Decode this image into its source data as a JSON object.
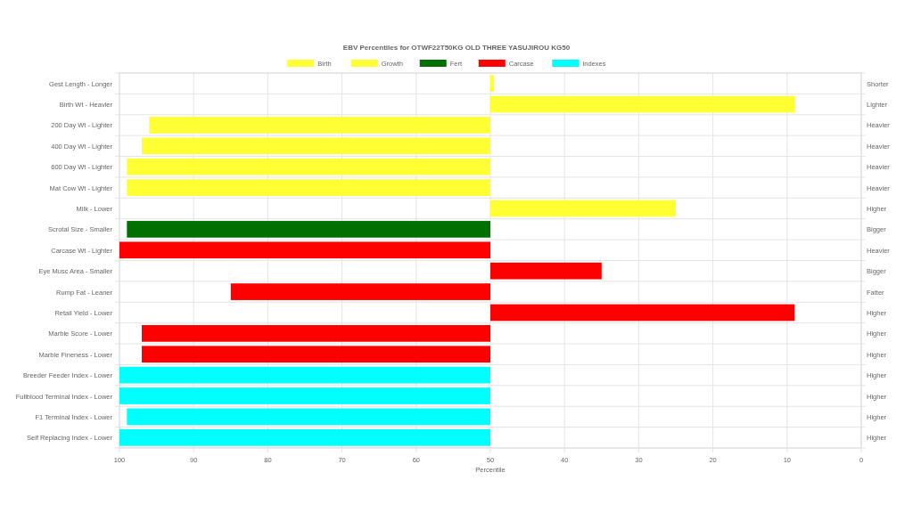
{
  "chart_data": {
    "type": "bar",
    "orientation": "horizontal",
    "title": "EBV Percentiles for OTWF22T50KG OLD THREE YASUJIROU KG50",
    "xlabel": "Percentile",
    "categories": [
      "Gest Length - Longer",
      "Birth Wt - Heavier",
      "200 Day Wt - Lighter",
      "400 Day Wt - Lighter",
      "600 Day Wt - Lighter",
      "Mat Cow Wt - Lighter",
      "Milk - Lower",
      "Scrotal Size - Smaller",
      "Carcase Wt - Lighter",
      "Eye Musc Area - Smaller",
      "Rump Fat - Leaner",
      "Retail Yield - Lower",
      "Marble Score - Lower",
      "Marble Fineness - Lower",
      "Breeder Feeder Index - Lower",
      "Fullblood Terminal Index - Lower",
      "F1 Terminal Index - Lower",
      "Self Replacing Index - Lower"
    ],
    "y2_categories": [
      "Shorter",
      "Lighter",
      "Heavier",
      "Heavier",
      "Heavier",
      "Heavier",
      "Higher",
      "Bigger",
      "Heavier",
      "Bigger",
      "Fatter",
      "Higher",
      "Higher",
      "Higher",
      "Higher",
      "Higher",
      "Higher",
      "Higher"
    ],
    "series": [
      {
        "name": "Birth",
        "color": "#ffff33",
        "base": [
          50,
          50,
          null,
          null,
          null,
          null,
          null,
          null,
          null,
          null,
          null,
          null,
          null,
          null,
          null,
          null,
          null,
          null
        ],
        "values": [
          -0.5,
          -41,
          null,
          null,
          null,
          null,
          null,
          null,
          null,
          null,
          null,
          null,
          null,
          null,
          null,
          null,
          null,
          null
        ]
      },
      {
        "name": "Growth",
        "color": "#ffff33",
        "base": [
          null,
          null,
          50,
          50,
          50,
          50,
          50,
          null,
          null,
          null,
          null,
          null,
          null,
          null,
          null,
          null,
          null,
          null
        ],
        "values": [
          null,
          null,
          46,
          47,
          49,
          49,
          -25,
          null,
          null,
          null,
          null,
          null,
          null,
          null,
          null,
          null,
          null,
          null
        ]
      },
      {
        "name": "Fert",
        "color": "#007000",
        "base": [
          null,
          null,
          null,
          null,
          null,
          null,
          null,
          50,
          null,
          null,
          null,
          null,
          null,
          null,
          null,
          null,
          null,
          null
        ],
        "values": [
          null,
          null,
          null,
          null,
          null,
          null,
          null,
          49,
          null,
          null,
          null,
          null,
          null,
          null,
          null,
          null,
          null,
          null
        ]
      },
      {
        "name": "Carcase",
        "color": "#ff0000",
        "base": [
          null,
          null,
          null,
          null,
          null,
          null,
          null,
          null,
          50,
          50,
          50,
          50,
          50,
          50,
          null,
          null,
          null,
          null
        ],
        "values": [
          null,
          null,
          null,
          null,
          null,
          null,
          null,
          null,
          50,
          -15,
          35,
          -41,
          47,
          47,
          null,
          null,
          null,
          null
        ]
      },
      {
        "name": "Indexes",
        "color": "#00ffff",
        "base": [
          null,
          null,
          null,
          null,
          null,
          null,
          null,
          null,
          null,
          null,
          null,
          null,
          null,
          null,
          50,
          50,
          50,
          50
        ],
        "values": [
          null,
          null,
          null,
          null,
          null,
          null,
          null,
          null,
          null,
          null,
          null,
          null,
          null,
          null,
          50,
          50,
          49,
          50
        ]
      }
    ],
    "xlim": [
      100,
      0
    ],
    "xticks": [
      100,
      90,
      80,
      70,
      60,
      50,
      40,
      30,
      20,
      10,
      0
    ],
    "grid": true,
    "legend": "top"
  }
}
